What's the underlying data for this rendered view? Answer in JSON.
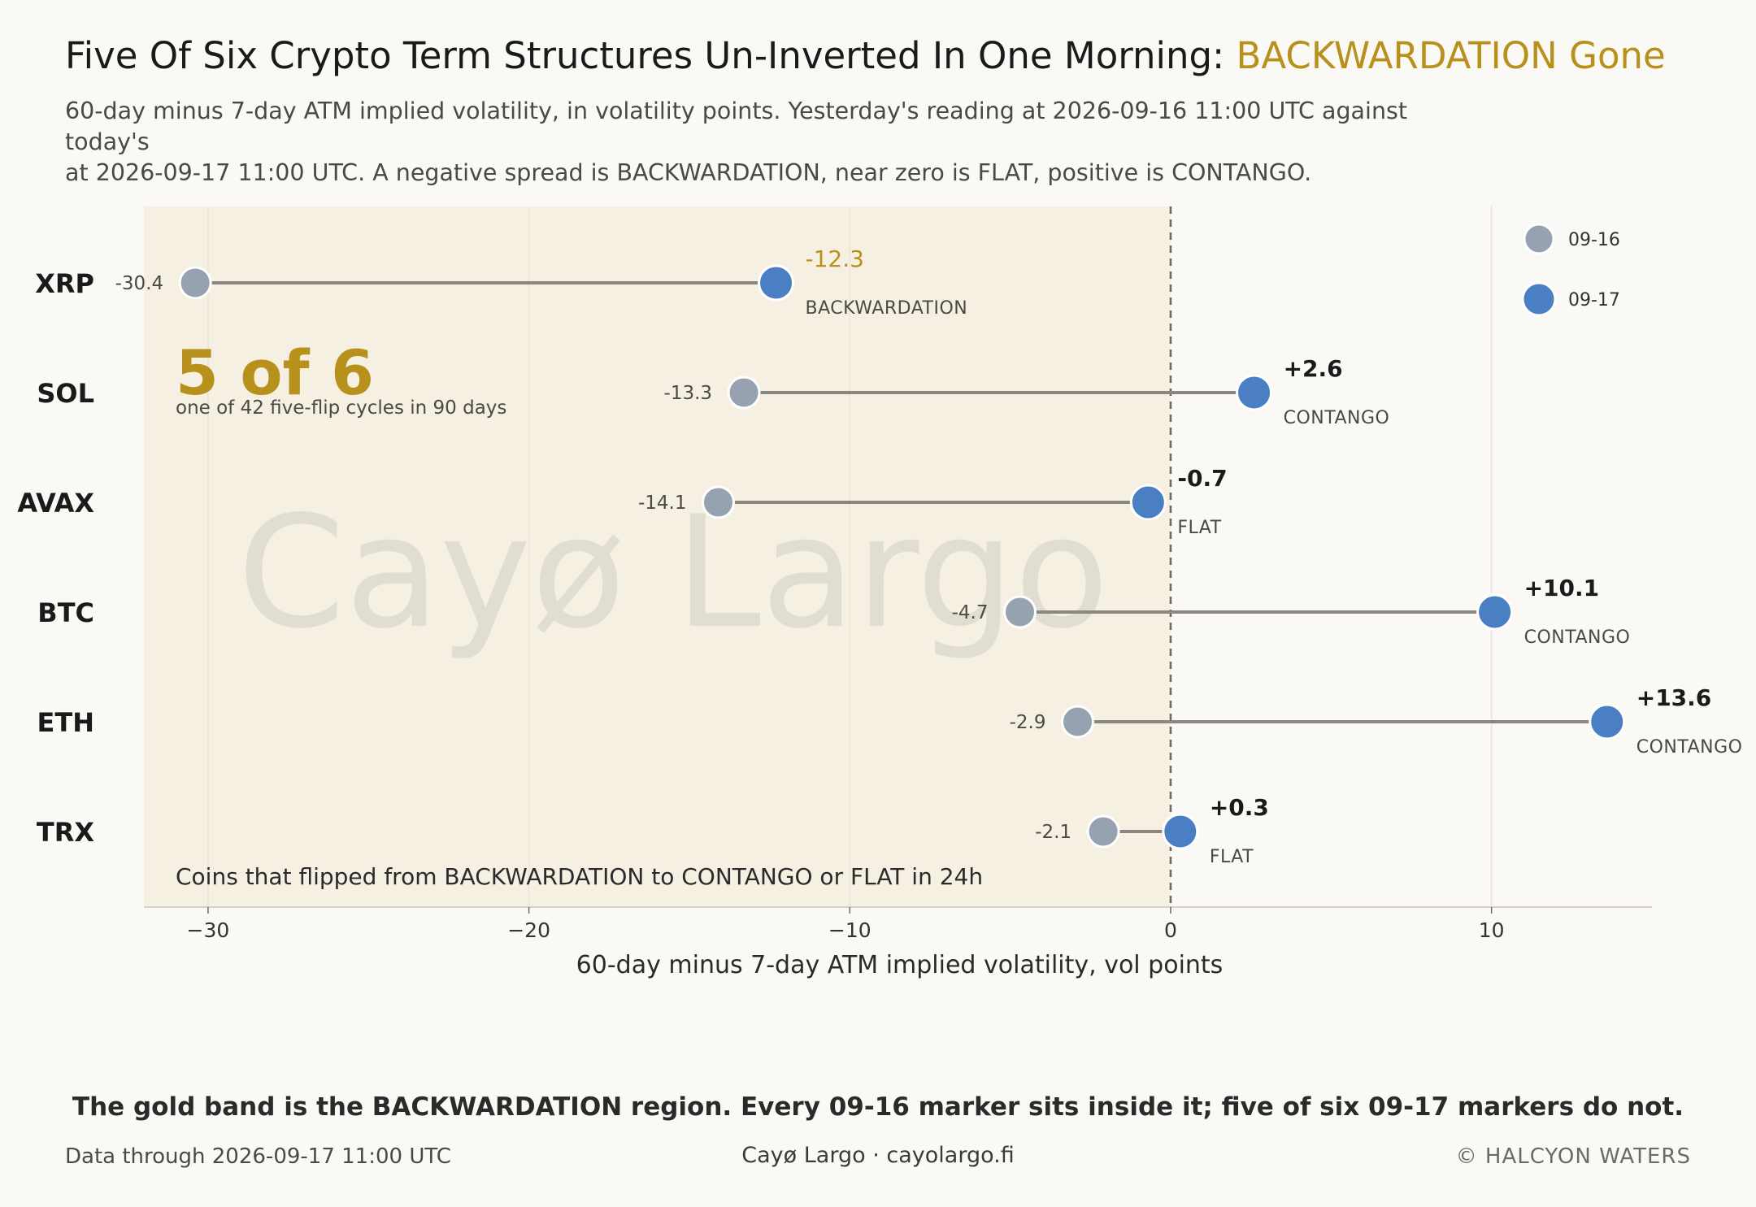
{
  "header": {
    "title_main": "Five Of Six Crypto Term Structures Un-Inverted In One Morning:",
    "title_highlight": "BACKWARDATION Gone",
    "subtitle_line1": "60-day minus 7-day ATM implied volatility, in volatility points. Yesterday's reading at 2026-09-16 11:00 UTC against today's",
    "subtitle_line2": "at 2026-09-17 11:00 UTC. A negative spread is BACKWARDATION, near zero is FLAT, positive is CONTANGO."
  },
  "annotations": {
    "big_stat": "5 of 6",
    "big_stat_sub": "one of 42 five-flip cycles in 90 days",
    "band_note": "Coins that flipped from BACKWARDATION to CONTANGO or FLAT in 24h",
    "watermark": "Cayø Largo"
  },
  "colors": {
    "before": "#97a2b0",
    "after": "#4a7fc4",
    "highlight": "#b8901c",
    "band": "#f5f0e2",
    "connector": "#8a8780"
  },
  "chart_data": {
    "type": "dumbbell",
    "xlabel": "60-day minus 7-day ATM implied volatility, vol points",
    "xlim": [
      -32,
      15
    ],
    "xticks": [
      -30,
      -20,
      -10,
      0,
      10
    ],
    "xtick_labels": [
      "−30",
      "−20",
      "−10",
      "0",
      "10"
    ],
    "backwardation_band": [
      -32,
      0
    ],
    "legend_position": "top-right",
    "series": [
      {
        "name": "09-16"
      },
      {
        "name": "09-17"
      }
    ],
    "rows": [
      {
        "coin": "XRP",
        "before": -30.4,
        "after": -12.3,
        "before_label": "-30.4",
        "after_label": "-12.3",
        "state": "BACKWARDATION",
        "highlight": true
      },
      {
        "coin": "SOL",
        "before": -13.3,
        "after": 2.6,
        "before_label": "-13.3",
        "after_label": "+2.6",
        "state": "CONTANGO",
        "highlight": false
      },
      {
        "coin": "AVAX",
        "before": -14.1,
        "after": -0.7,
        "before_label": "-14.1",
        "after_label": "-0.7",
        "state": "FLAT",
        "highlight": false
      },
      {
        "coin": "BTC",
        "before": -4.7,
        "after": 10.1,
        "before_label": "-4.7",
        "after_label": "+10.1",
        "state": "CONTANGO",
        "highlight": false
      },
      {
        "coin": "ETH",
        "before": -2.9,
        "after": 13.6,
        "before_label": "-2.9",
        "after_label": "+13.6",
        "state": "CONTANGO",
        "highlight": false
      },
      {
        "coin": "TRX",
        "before": -2.1,
        "after": 0.3,
        "before_label": "-2.1",
        "after_label": "+0.3",
        "state": "FLAT",
        "highlight": false
      }
    ]
  },
  "footer": {
    "caption": "The gold band is the BACKWARDATION region. Every 09-16 marker sits inside it; five of six 09-17 markers do not.",
    "left": "Data through 2026-09-17 11:00 UTC",
    "middle": "Cayø Largo  ·  cayolargo.fi",
    "right": "© HALCYON WATERS"
  }
}
